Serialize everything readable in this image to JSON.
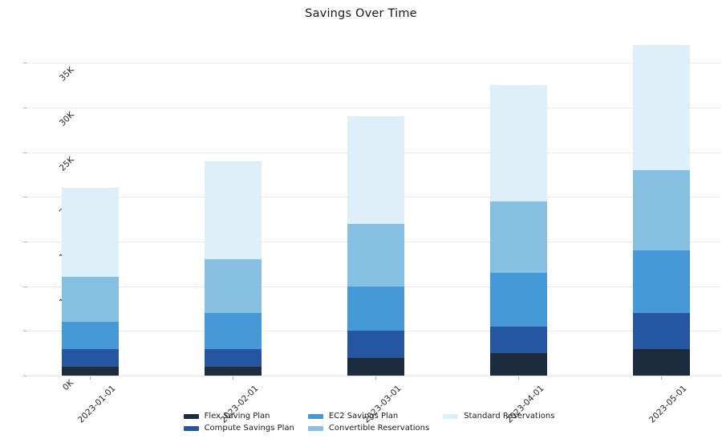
{
  "title": "Savings Over Time",
  "chart_data": {
    "type": "bar",
    "stacked": true,
    "title": "Savings Over Time",
    "xlabel": "",
    "ylabel": "",
    "categories": [
      "2023-01-01",
      "2023-02-01",
      "2023-03-01",
      "2023-04-01",
      "2023-05-01"
    ],
    "series": [
      {
        "name": "Flex Saving Plan",
        "color": "#1c2b3e",
        "values": [
          1000,
          1000,
          2000,
          2500,
          3000
        ]
      },
      {
        "name": "Compute Savings Plan",
        "color": "#2456a2",
        "values": [
          2000,
          2000,
          3000,
          3000,
          4000
        ]
      },
      {
        "name": "EC2 Savings Plan",
        "color": "#4599d7",
        "values": [
          3000,
          4000,
          5000,
          6000,
          7000
        ]
      },
      {
        "name": "Convertible Reservations",
        "color": "#85c0e3",
        "values": [
          5000,
          6000,
          7000,
          8000,
          9000
        ]
      },
      {
        "name": "Standard Reservations",
        "color": "#deeffa",
        "values": [
          10000,
          11000,
          12000,
          13000,
          14000
        ]
      }
    ],
    "stack_totals": [
      21000,
      24000,
      29000,
      32500,
      37000
    ],
    "y_ticks": [
      {
        "label": "0K",
        "value": 0
      },
      {
        "label": "5K",
        "value": 5000
      },
      {
        "label": "10K",
        "value": 10000
      },
      {
        "label": "15K",
        "value": 15000
      },
      {
        "label": "20K",
        "value": 20000
      },
      {
        "label": "25K",
        "value": 25000
      },
      {
        "label": "30K",
        "value": 30000
      },
      {
        "label": "35K",
        "value": 35000
      }
    ],
    "ylim": [
      0,
      39000
    ],
    "grid": "horizontal-dotted",
    "legend_position": "bottom-center",
    "legend_columns": [
      [
        0,
        1
      ],
      [
        2,
        3
      ],
      [
        4
      ]
    ],
    "tick_label_rotation_deg": 45
  }
}
